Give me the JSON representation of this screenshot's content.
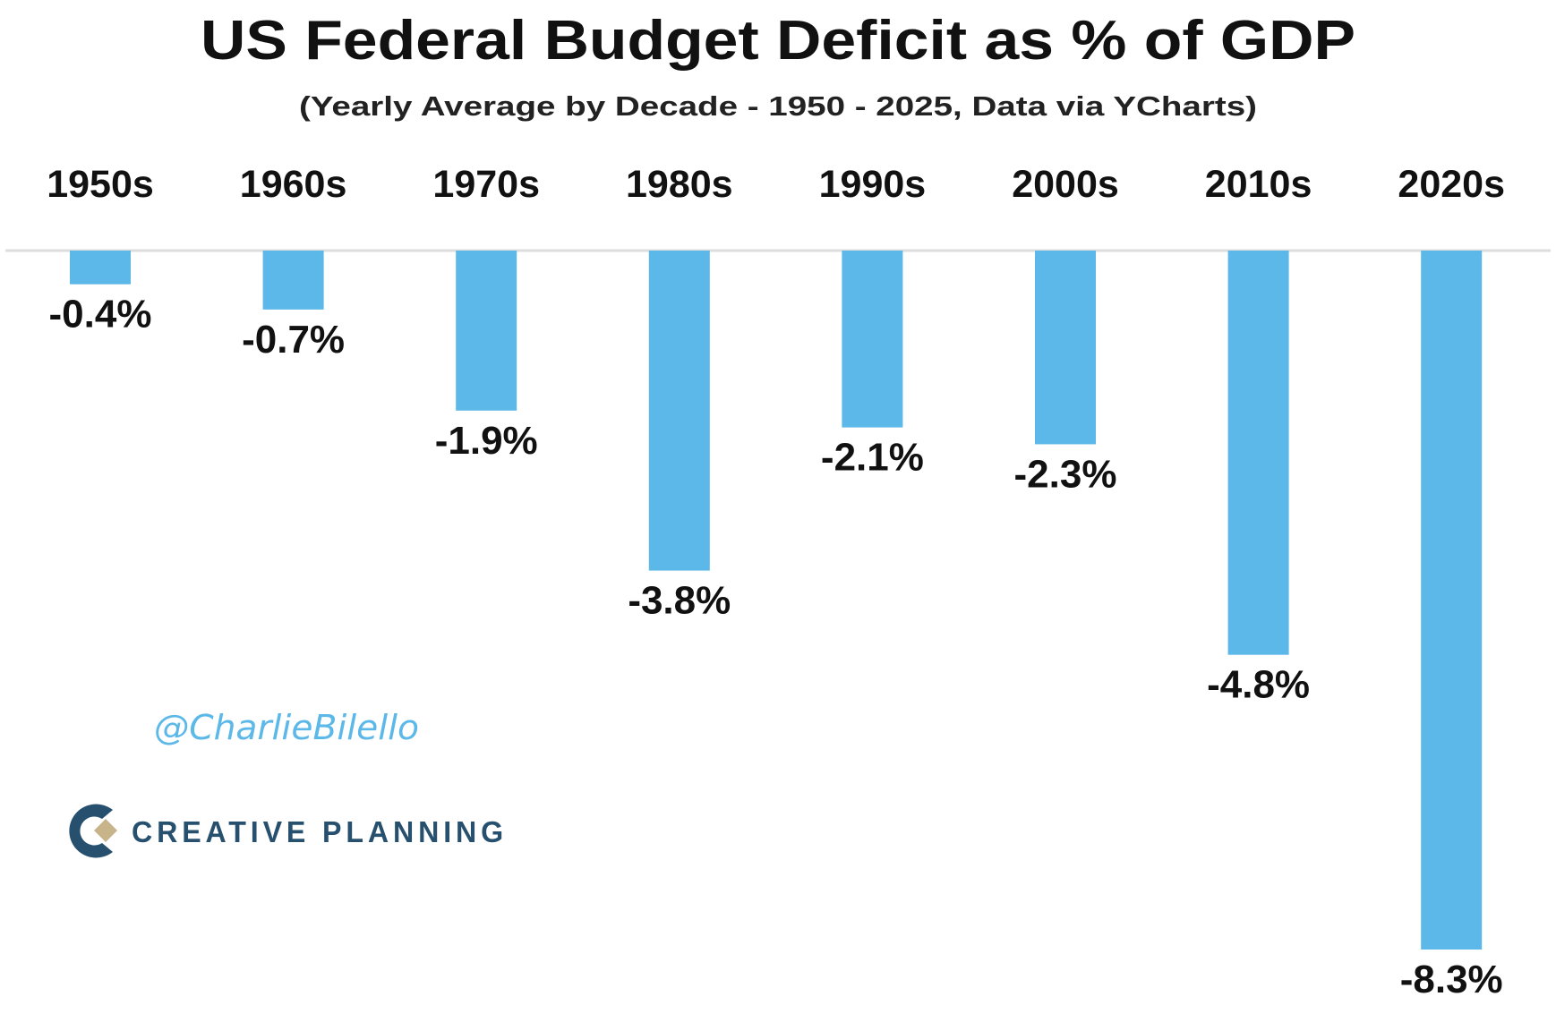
{
  "chart_data": {
    "type": "bar",
    "title": "US Federal Budget Deficit as % of GDP",
    "subtitle": "(Yearly Average by Decade - 1950 - 2025, Data via YCharts)",
    "categories": [
      "1950s",
      "1960s",
      "1970s",
      "1980s",
      "1990s",
      "2000s",
      "2010s",
      "2020s"
    ],
    "values": [
      -0.4,
      -0.7,
      -1.9,
      -3.8,
      -2.1,
      -2.3,
      -4.8,
      -8.3
    ],
    "value_labels": [
      "-0.4%",
      "-0.7%",
      "-1.9%",
      "-3.8%",
      "-2.1%",
      "-2.3%",
      "-4.8%",
      "-8.3%"
    ],
    "xlabel": "",
    "ylabel": "",
    "ylim": [
      -8.3,
      0
    ],
    "grid": false,
    "bar_color": "#5bb8e8"
  },
  "watermark": {
    "handle": "@CharlieBilello"
  },
  "logo": {
    "text": "CREATIVE PLANNING",
    "text_color": "#27506e",
    "accent_color": "#c8b48a"
  }
}
